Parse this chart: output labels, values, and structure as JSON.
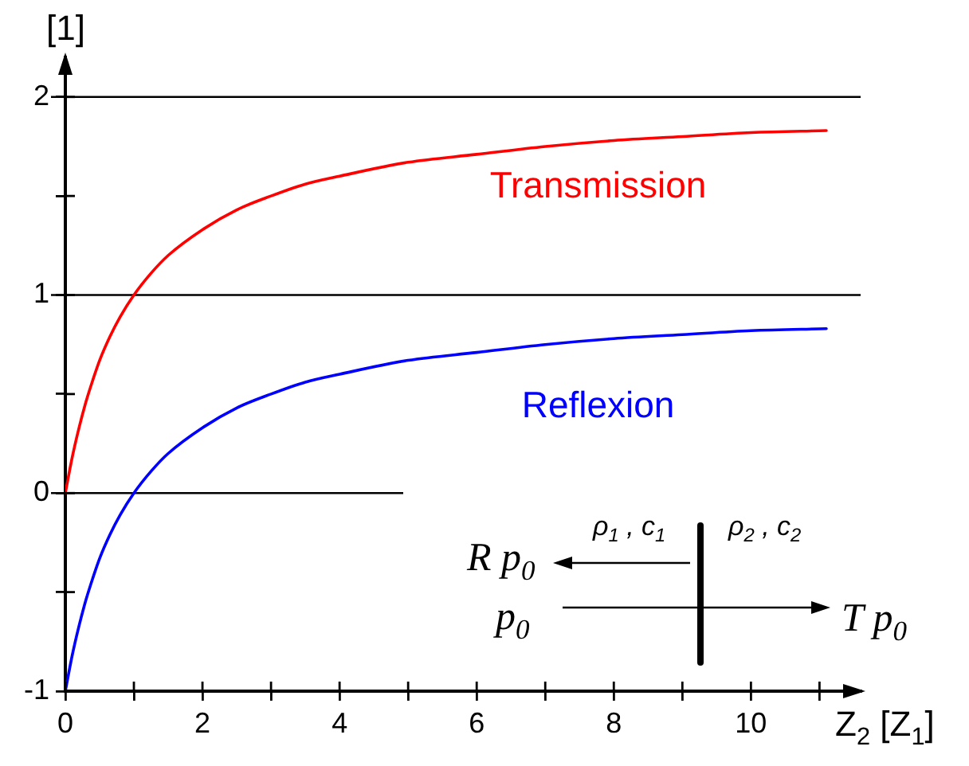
{
  "chart_data": {
    "type": "line",
    "xlabel": "Z$_{2}$ [Z$_{1}$]",
    "ylabel": "[1]",
    "x": [
      0,
      0.1,
      0.2,
      0.3,
      0.4,
      0.5,
      0.65,
      0.8,
      1,
      1.25,
      1.5,
      2,
      2.5,
      3,
      3.5,
      4,
      5,
      6,
      7,
      8,
      9,
      10,
      11.1
    ],
    "series": [
      {
        "name": "Transmission",
        "color": "#ff0000",
        "values": [
          0,
          0.18,
          0.33,
          0.46,
          0.57,
          0.67,
          0.79,
          0.89,
          1,
          1.11,
          1.2,
          1.33,
          1.43,
          1.5,
          1.56,
          1.6,
          1.67,
          1.71,
          1.75,
          1.78,
          1.8,
          1.82,
          1.83
        ]
      },
      {
        "name": "Reflexion",
        "color": "#0000ff",
        "values": [
          -1,
          -0.82,
          -0.67,
          -0.54,
          -0.43,
          -0.33,
          -0.21,
          -0.11,
          0,
          0.11,
          0.2,
          0.33,
          0.43,
          0.5,
          0.56,
          0.6,
          0.67,
          0.71,
          0.75,
          0.78,
          0.8,
          0.82,
          0.83
        ]
      }
    ],
    "xlim": [
      0,
      11.6
    ],
    "ylim": [
      -1,
      2.2
    ],
    "xticks": [
      0,
      {
        "value": 1,
        "label": null
      },
      2,
      {
        "value": 3,
        "label": null
      },
      4,
      {
        "value": 5,
        "label": null
      },
      6,
      {
        "value": 7,
        "label": null
      },
      8,
      {
        "value": 9,
        "label": null
      },
      10,
      {
        "value": 11,
        "label": null
      }
    ],
    "yticks": [
      -1,
      {
        "value": -0.5,
        "label": null
      },
      0,
      {
        "value": 0.5,
        "label": null
      },
      1,
      {
        "value": 1.5,
        "label": null
      },
      2
    ],
    "grid": "y",
    "ref_lines": [
      {
        "axis": "y",
        "value": 0
      }
    ],
    "annotations": [
      "R p$_{0}$",
      "p$_{0}$",
      "ρ$_{1}$ , c$_{1}$",
      "ρ$_{2}$ , c$_{2}$",
      "T p$_{0}$"
    ]
  }
}
